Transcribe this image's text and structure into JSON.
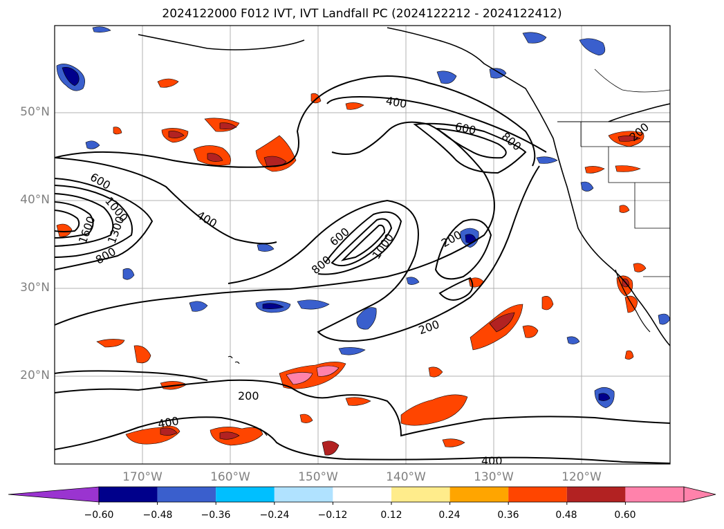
{
  "title": "2024122000 F012 IVT, IVT Landfall PC (2024122212 - 2024122412)",
  "lat_ticks": [
    "50°N",
    "40°N",
    "30°N",
    "20°N"
  ],
  "lon_ticks": [
    "170°W",
    "160°W",
    "150°W",
    "140°W",
    "130°W",
    "120°W"
  ],
  "contour_labels": [
    "400",
    "600",
    "800",
    "200",
    "600",
    "1000",
    "1300",
    "1600",
    "800",
    "400",
    "600",
    "800",
    "1000",
    "200",
    "200",
    "200",
    "400",
    "400",
    "400"
  ],
  "colorbar": {
    "ticks": [
      "−0.60",
      "−0.48",
      "−0.36",
      "−0.24",
      "−0.12",
      "0.12",
      "0.24",
      "0.36",
      "0.48",
      "0.60"
    ],
    "colors": {
      "under": "#9a34d0",
      "bins": [
        "#00008b",
        "#3a5fcd",
        "#00bfff",
        "#b0e2ff",
        "#ffffff",
        "#ffec8b",
        "#ffa500",
        "#ff4500",
        "#b22222",
        "#ff82ab"
      ],
      "over": "#ff82ab"
    }
  }
}
